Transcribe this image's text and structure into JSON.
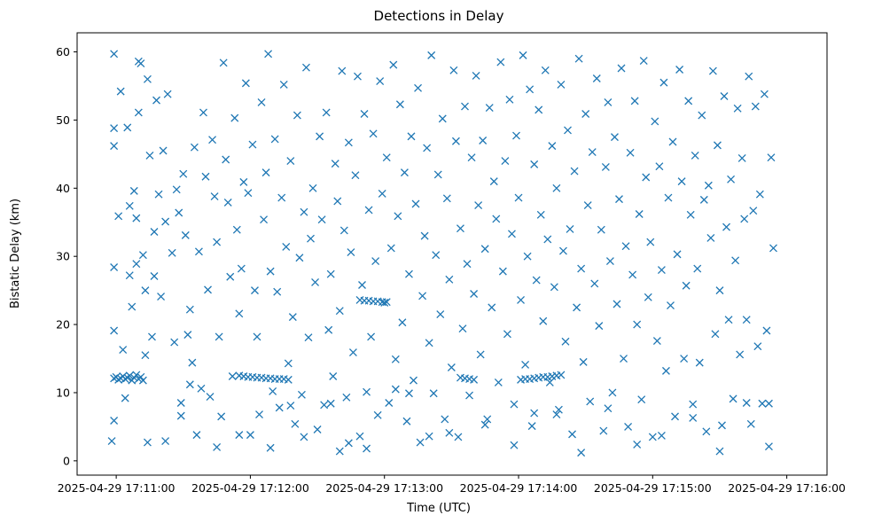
{
  "chart_data": {
    "type": "scatter",
    "title": "Detections in Delay",
    "xlabel": "Time (UTC)",
    "ylabel": "Bistatic Delay (km)",
    "marker": "x",
    "color": "#1f77b4",
    "xlim_seconds": [
      -17.5,
      318
    ],
    "ylim": [
      -2.1,
      62.8
    ],
    "x_origin": "2025-04-29 17:11:00",
    "x_ticks": [
      {
        "value": 0,
        "label": "2025-04-29 17:11:00"
      },
      {
        "value": 60,
        "label": "2025-04-29 17:12:00"
      },
      {
        "value": 120,
        "label": "2025-04-29 17:13:00"
      },
      {
        "value": 180,
        "label": "2025-04-29 17:14:00"
      },
      {
        "value": 240,
        "label": "2025-04-29 17:15:00"
      },
      {
        "value": 300,
        "label": "2025-04-29 17:16:00"
      }
    ],
    "y_ticks": [
      {
        "value": 0,
        "label": "0"
      },
      {
        "value": 10,
        "label": "10"
      },
      {
        "value": 20,
        "label": "20"
      },
      {
        "value": 30,
        "label": "30"
      },
      {
        "value": 40,
        "label": "40"
      },
      {
        "value": 50,
        "label": "50"
      },
      {
        "value": 60,
        "label": "60"
      }
    ],
    "x_unit": "seconds after 2025-04-29 17:11:00",
    "points": [
      [
        -1,
        59.7
      ],
      [
        -1,
        48.8
      ],
      [
        -1,
        46.2
      ],
      [
        -1,
        28.4
      ],
      [
        -1,
        19.1
      ],
      [
        -1,
        5.9
      ],
      [
        -2,
        2.9
      ],
      [
        1,
        35.9
      ],
      [
        2,
        54.2
      ],
      [
        3,
        16.3
      ],
      [
        4,
        9.2
      ],
      [
        5,
        48.9
      ],
      [
        6,
        37.4
      ],
      [
        6,
        27.2
      ],
      [
        7,
        22.6
      ],
      [
        8,
        39.6
      ],
      [
        9,
        35.6
      ],
      [
        9,
        28.9
      ],
      [
        10,
        58.6
      ],
      [
        10,
        51.1
      ],
      [
        11,
        58.3
      ],
      [
        12,
        30.2
      ],
      [
        13,
        25.0
      ],
      [
        13,
        15.5
      ],
      [
        14,
        56.0
      ],
      [
        15,
        44.8
      ],
      [
        16,
        18.2
      ],
      [
        17,
        33.6
      ],
      [
        17,
        27.1
      ],
      [
        18,
        52.9
      ],
      [
        19,
        39.1
      ],
      [
        20,
        24.1
      ],
      [
        21,
        45.5
      ],
      [
        22,
        35.1
      ],
      [
        23,
        53.8
      ],
      [
        25,
        30.5
      ],
      [
        26,
        17.4
      ],
      [
        27,
        39.8
      ],
      [
        28,
        36.4
      ],
      [
        29,
        8.5
      ],
      [
        29,
        6.6
      ],
      [
        30,
        42.1
      ],
      [
        31,
        33.1
      ],
      [
        32,
        18.5
      ],
      [
        33,
        22.2
      ],
      [
        34,
        14.4
      ],
      [
        35,
        46.0
      ],
      [
        36,
        3.8
      ],
      [
        37,
        30.7
      ],
      [
        38,
        10.6
      ],
      [
        39,
        51.1
      ],
      [
        40,
        41.7
      ],
      [
        41,
        25.1
      ],
      [
        42,
        9.4
      ],
      [
        43,
        47.1
      ],
      [
        44,
        38.8
      ],
      [
        45,
        32.1
      ],
      [
        46,
        18.2
      ],
      [
        47,
        6.5
      ],
      [
        48,
        58.4
      ],
      [
        49,
        44.2
      ],
      [
        50,
        37.9
      ],
      [
        51,
        27.0
      ],
      [
        52,
        12.4
      ],
      [
        53,
        50.3
      ],
      [
        54,
        33.9
      ],
      [
        55,
        21.6
      ],
      [
        56,
        28.2
      ],
      [
        57,
        40.9
      ],
      [
        58,
        55.4
      ],
      [
        59,
        39.3
      ],
      [
        60,
        3.8
      ],
      [
        61,
        46.4
      ],
      [
        62,
        25.0
      ],
      [
        63,
        18.2
      ],
      [
        64,
        6.8
      ],
      [
        65,
        52.6
      ],
      [
        66,
        35.4
      ],
      [
        67,
        42.3
      ],
      [
        68,
        59.7
      ],
      [
        69,
        27.8
      ],
      [
        70,
        10.2
      ],
      [
        71,
        47.2
      ],
      [
        72,
        24.8
      ],
      [
        73,
        7.8
      ],
      [
        74,
        38.6
      ],
      [
        75,
        55.2
      ],
      [
        76,
        31.4
      ],
      [
        77,
        14.3
      ],
      [
        78,
        44.0
      ],
      [
        79,
        21.1
      ],
      [
        80,
        5.4
      ],
      [
        81,
        50.7
      ],
      [
        82,
        29.8
      ],
      [
        83,
        9.7
      ],
      [
        84,
        36.5
      ],
      [
        85,
        57.7
      ],
      [
        86,
        18.1
      ],
      [
        87,
        32.6
      ],
      [
        88,
        40.0
      ],
      [
        89,
        26.2
      ],
      [
        90,
        4.6
      ],
      [
        91,
        47.6
      ],
      [
        92,
        35.4
      ],
      [
        93,
        8.2
      ],
      [
        94,
        51.1
      ],
      [
        95,
        19.2
      ],
      [
        96,
        27.4
      ],
      [
        97,
        12.4
      ],
      [
        98,
        43.6
      ],
      [
        99,
        38.1
      ],
      [
        100,
        22.0
      ],
      [
        101,
        57.2
      ],
      [
        102,
        33.8
      ],
      [
        103,
        9.3
      ],
      [
        104,
        46.7
      ],
      [
        105,
        30.6
      ],
      [
        106,
        15.9
      ],
      [
        107,
        41.9
      ],
      [
        108,
        56.4
      ],
      [
        109,
        3.6
      ],
      [
        110,
        25.8
      ],
      [
        111,
        50.9
      ],
      [
        112,
        10.1
      ],
      [
        113,
        36.8
      ],
      [
        114,
        18.2
      ],
      [
        115,
        48.0
      ],
      [
        116,
        29.3
      ],
      [
        117,
        6.7
      ],
      [
        118,
        55.7
      ],
      [
        119,
        39.2
      ],
      [
        120,
        23.2
      ],
      [
        121,
        44.5
      ],
      [
        122,
        8.5
      ],
      [
        123,
        31.2
      ],
      [
        124,
        58.1
      ],
      [
        125,
        14.9
      ],
      [
        126,
        35.9
      ],
      [
        127,
        52.3
      ],
      [
        128,
        20.3
      ],
      [
        129,
        42.3
      ],
      [
        130,
        5.8
      ],
      [
        131,
        27.4
      ],
      [
        132,
        47.6
      ],
      [
        133,
        11.8
      ],
      [
        134,
        37.7
      ],
      [
        135,
        54.7
      ],
      [
        136,
        2.7
      ],
      [
        137,
        24.2
      ],
      [
        138,
        33.0
      ],
      [
        139,
        45.9
      ],
      [
        140,
        17.3
      ],
      [
        141,
        59.5
      ],
      [
        142,
        9.9
      ],
      [
        143,
        30.2
      ],
      [
        144,
        42.0
      ],
      [
        145,
        21.5
      ],
      [
        146,
        50.2
      ],
      [
        147,
        6.1
      ],
      [
        148,
        38.5
      ],
      [
        149,
        26.6
      ],
      [
        150,
        13.7
      ],
      [
        151,
        57.3
      ],
      [
        152,
        46.9
      ],
      [
        153,
        3.5
      ],
      [
        154,
        34.1
      ],
      [
        155,
        19.4
      ],
      [
        156,
        52.0
      ],
      [
        157,
        28.9
      ],
      [
        158,
        9.6
      ],
      [
        159,
        44.5
      ],
      [
        160,
        24.5
      ],
      [
        161,
        56.5
      ],
      [
        162,
        37.5
      ],
      [
        163,
        15.6
      ],
      [
        164,
        47.0
      ],
      [
        165,
        31.1
      ],
      [
        166,
        6.1
      ],
      [
        167,
        51.8
      ],
      [
        168,
        22.5
      ],
      [
        169,
        41.0
      ],
      [
        170,
        35.5
      ],
      [
        171,
        11.5
      ],
      [
        172,
        58.5
      ],
      [
        173,
        27.8
      ],
      [
        174,
        44.0
      ],
      [
        175,
        18.6
      ],
      [
        176,
        53.0
      ],
      [
        177,
        33.3
      ],
      [
        178,
        8.3
      ],
      [
        179,
        47.7
      ],
      [
        180,
        38.6
      ],
      [
        181,
        23.6
      ],
      [
        182,
        59.5
      ],
      [
        183,
        14.1
      ],
      [
        184,
        30.0
      ],
      [
        185,
        54.5
      ],
      [
        186,
        5.1
      ],
      [
        187,
        43.5
      ],
      [
        188,
        26.5
      ],
      [
        189,
        51.5
      ],
      [
        190,
        36.1
      ],
      [
        191,
        20.5
      ],
      [
        192,
        57.3
      ],
      [
        193,
        32.5
      ],
      [
        194,
        11.5
      ],
      [
        195,
        46.2
      ],
      [
        196,
        25.5
      ],
      [
        197,
        40.0
      ],
      [
        198,
        7.5
      ],
      [
        199,
        55.2
      ],
      [
        200,
        30.8
      ],
      [
        201,
        17.5
      ],
      [
        202,
        48.5
      ],
      [
        203,
        34.0
      ],
      [
        204,
        3.9
      ],
      [
        205,
        42.5
      ],
      [
        206,
        22.5
      ],
      [
        207,
        59.0
      ],
      [
        208,
        28.2
      ],
      [
        209,
        14.5
      ],
      [
        210,
        50.9
      ],
      [
        211,
        37.5
      ],
      [
        212,
        8.7
      ],
      [
        213,
        45.3
      ],
      [
        214,
        26.0
      ],
      [
        215,
        56.1
      ],
      [
        216,
        19.8
      ],
      [
        217,
        33.9
      ],
      [
        218,
        4.4
      ],
      [
        219,
        43.1
      ],
      [
        220,
        52.6
      ],
      [
        221,
        29.3
      ],
      [
        222,
        10.0
      ],
      [
        223,
        47.5
      ],
      [
        224,
        23.0
      ],
      [
        225,
        38.4
      ],
      [
        226,
        57.6
      ],
      [
        227,
        15.0
      ],
      [
        228,
        31.5
      ],
      [
        229,
        5.0
      ],
      [
        230,
        45.2
      ],
      [
        231,
        27.3
      ],
      [
        232,
        52.8
      ],
      [
        233,
        20.0
      ],
      [
        234,
        36.2
      ],
      [
        235,
        9.0
      ],
      [
        236,
        58.7
      ],
      [
        237,
        41.6
      ],
      [
        238,
        24.0
      ],
      [
        239,
        32.1
      ],
      [
        240,
        3.5
      ],
      [
        241,
        49.8
      ],
      [
        242,
        17.6
      ],
      [
        243,
        43.2
      ],
      [
        244,
        28.0
      ],
      [
        245,
        55.5
      ],
      [
        246,
        13.2
      ],
      [
        247,
        38.6
      ],
      [
        248,
        22.8
      ],
      [
        249,
        46.8
      ],
      [
        250,
        6.5
      ],
      [
        251,
        30.3
      ],
      [
        252,
        57.4
      ],
      [
        253,
        41.0
      ],
      [
        254,
        15.0
      ],
      [
        255,
        25.7
      ],
      [
        256,
        52.8
      ],
      [
        257,
        36.1
      ],
      [
        258,
        8.3
      ],
      [
        259,
        44.8
      ],
      [
        260,
        28.2
      ],
      [
        261,
        14.4
      ],
      [
        262,
        50.7
      ],
      [
        263,
        38.3
      ],
      [
        264,
        4.3
      ],
      [
        265,
        40.4
      ],
      [
        266,
        32.7
      ],
      [
        267,
        57.2
      ],
      [
        268,
        18.6
      ],
      [
        269,
        46.3
      ],
      [
        270,
        25.0
      ],
      [
        271,
        5.2
      ],
      [
        272,
        53.5
      ],
      [
        273,
        34.3
      ],
      [
        274,
        20.7
      ],
      [
        275,
        41.3
      ],
      [
        276,
        9.1
      ],
      [
        277,
        29.4
      ],
      [
        278,
        51.7
      ],
      [
        279,
        15.6
      ],
      [
        280,
        44.4
      ],
      [
        281,
        35.5
      ],
      [
        282,
        20.7
      ],
      [
        283,
        56.4
      ],
      [
        284,
        5.4
      ],
      [
        285,
        36.7
      ],
      [
        286,
        52.0
      ],
      [
        287,
        16.8
      ],
      [
        288,
        39.1
      ],
      [
        289,
        8.4
      ],
      [
        290,
        53.8
      ],
      [
        291,
        19.1
      ],
      [
        292,
        2.1
      ],
      [
        293,
        44.5
      ],
      [
        294,
        31.2
      ],
      [
        -1,
        12.1
      ],
      [
        0,
        12.3
      ],
      [
        1,
        11.9
      ],
      [
        2,
        12.1
      ],
      [
        3,
        12.4
      ],
      [
        4,
        12.0
      ],
      [
        5,
        12.2
      ],
      [
        6,
        12.5
      ],
      [
        7,
        11.8
      ],
      [
        8,
        12.2
      ],
      [
        9,
        12.6
      ],
      [
        10,
        12.0
      ],
      [
        11,
        12.3
      ],
      [
        12,
        11.8
      ],
      [
        55,
        12.5
      ],
      [
        57,
        12.4
      ],
      [
        59,
        12.3
      ],
      [
        61,
        12.3
      ],
      [
        63,
        12.2
      ],
      [
        65,
        12.2
      ],
      [
        67,
        12.1
      ],
      [
        69,
        12.1
      ],
      [
        71,
        12.0
      ],
      [
        73,
        12.0
      ],
      [
        75,
        12.0
      ],
      [
        77,
        11.9
      ],
      [
        109,
        23.6
      ],
      [
        111,
        23.5
      ],
      [
        113,
        23.5
      ],
      [
        115,
        23.4
      ],
      [
        117,
        23.4
      ],
      [
        119,
        23.3
      ],
      [
        121,
        23.3
      ],
      [
        154,
        12.2
      ],
      [
        156,
        12.1
      ],
      [
        158,
        12.0
      ],
      [
        160,
        11.9
      ],
      [
        181,
        11.9
      ],
      [
        183,
        12.0
      ],
      [
        185,
        12.0
      ],
      [
        187,
        12.1
      ],
      [
        189,
        12.2
      ],
      [
        191,
        12.3
      ],
      [
        193,
        12.3
      ],
      [
        195,
        12.4
      ],
      [
        197,
        12.5
      ],
      [
        199,
        12.6
      ],
      [
        14,
        2.7
      ],
      [
        22,
        2.9
      ],
      [
        33,
        11.2
      ],
      [
        45,
        2.0
      ],
      [
        55,
        3.8
      ],
      [
        69,
        1.9
      ],
      [
        78,
        8.1
      ],
      [
        84,
        3.5
      ],
      [
        96,
        8.4
      ],
      [
        100,
        1.4
      ],
      [
        104,
        2.6
      ],
      [
        112,
        1.8
      ],
      [
        125,
        10.5
      ],
      [
        131,
        9.9
      ],
      [
        140,
        3.6
      ],
      [
        149,
        4.1
      ],
      [
        165,
        5.3
      ],
      [
        178,
        2.3
      ],
      [
        187,
        7.0
      ],
      [
        197,
        6.8
      ],
      [
        208,
        1.2
      ],
      [
        220,
        7.7
      ],
      [
        233,
        2.4
      ],
      [
        244,
        3.7
      ],
      [
        258,
        6.3
      ],
      [
        270,
        1.4
      ],
      [
        282,
        8.5
      ],
      [
        292,
        8.4
      ]
    ]
  }
}
